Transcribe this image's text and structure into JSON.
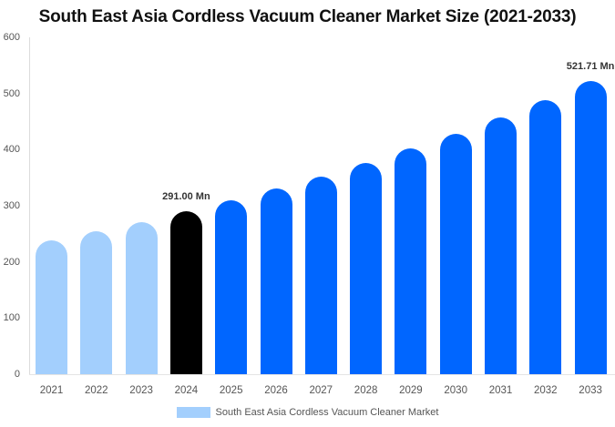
{
  "title": "South East Asia Cordless Vacuum Cleaner Market Size (2021-2033)",
  "legend": {
    "label": "South East Asia Cordless Vacuum Cleaner Market",
    "color": "#a3cffd"
  },
  "colors": {
    "historical": "#a3cffd",
    "base_year": "#000000",
    "forecast": "#0066ff"
  },
  "chart_data": {
    "type": "bar",
    "title": "South East Asia Cordless Vacuum Cleaner Market Size (2021-2033)",
    "xlabel": "",
    "ylabel": "",
    "ylim": [
      0,
      600
    ],
    "yticks": [
      0,
      100,
      200,
      300,
      400,
      500,
      600
    ],
    "grid": false,
    "legend_position": "bottom",
    "categories": [
      "2021",
      "2022",
      "2023",
      "2024",
      "2025",
      "2026",
      "2027",
      "2028",
      "2029",
      "2030",
      "2031",
      "2032",
      "2033"
    ],
    "series": [
      {
        "name": "South East Asia Cordless Vacuum Cleaner Market",
        "values": [
          237.6,
          254.6,
          270.8,
          291.0,
          309.7,
          330.8,
          351.9,
          376.2,
          402.1,
          428.1,
          457.3,
          488.1,
          521.71
        ]
      }
    ],
    "bar_colors": [
      "#a3cffd",
      "#a3cffd",
      "#a3cffd",
      "#000000",
      "#0066ff",
      "#0066ff",
      "#0066ff",
      "#0066ff",
      "#0066ff",
      "#0066ff",
      "#0066ff",
      "#0066ff",
      "#0066ff"
    ],
    "annotations": [
      {
        "category": "2024",
        "text": "291.00 Mn"
      },
      {
        "category": "2033",
        "text": "521.71 Mn"
      }
    ]
  }
}
